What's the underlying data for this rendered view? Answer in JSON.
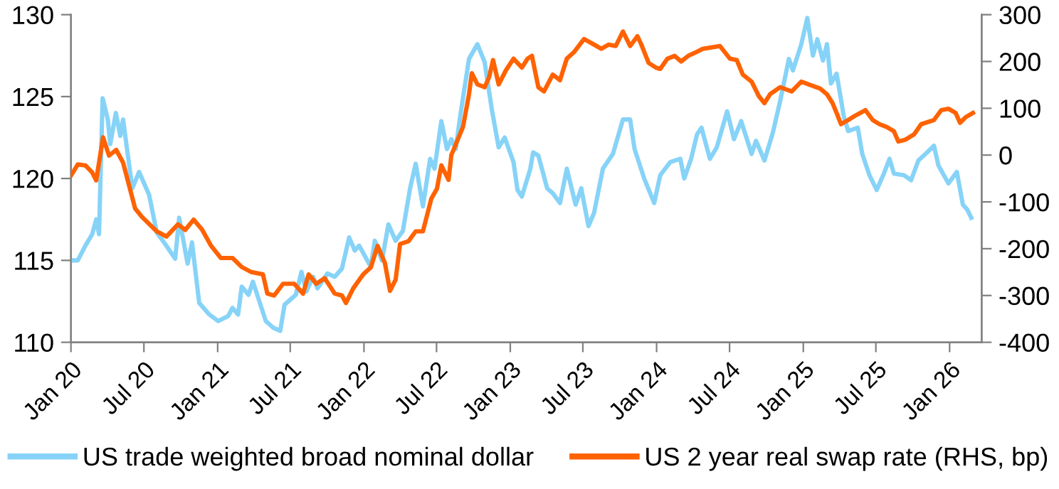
{
  "chart_data": {
    "type": "line",
    "xlim": [
      "2020-01-01",
      "2026-03-22"
    ],
    "xticks": [
      {
        "value": "2020-01-01",
        "label": "Jan 20"
      },
      {
        "value": "2020-07-01",
        "label": "Jul 20"
      },
      {
        "value": "2021-01-01",
        "label": "Jan 21"
      },
      {
        "value": "2021-07-01",
        "label": "Jul 21"
      },
      {
        "value": "2022-01-01",
        "label": "Jan 22"
      },
      {
        "value": "2022-07-01",
        "label": "Jul 22"
      },
      {
        "value": "2023-01-01",
        "label": "Jan 23"
      },
      {
        "value": "2023-07-01",
        "label": "Jul 23"
      },
      {
        "value": "2024-01-01",
        "label": "Jan 24"
      },
      {
        "value": "2024-07-01",
        "label": "Jul 24"
      },
      {
        "value": "2025-01-01",
        "label": "Jan 25"
      },
      {
        "value": "2025-07-01",
        "label": "Jul 25"
      },
      {
        "value": "2026-01-01",
        "label": "Jan 26"
      }
    ],
    "ylim": [
      110,
      130
    ],
    "yticks": [
      110,
      115,
      120,
      125,
      130
    ],
    "y2lim": [
      -400,
      300
    ],
    "y2ticks": [
      -400,
      -300,
      -200,
      -100,
      0,
      100,
      200,
      300
    ],
    "legend": "bottom",
    "grid": false,
    "marker": "none",
    "line_style": "solid",
    "series": [
      {
        "name": "US trade weighted broad nominal dollar",
        "color": "#87d3f8",
        "axis": "y",
        "x": [
          "2020-01-01",
          "2020-01-18",
          "2020-02-06",
          "2020-02-23",
          "2020-03-04",
          "2020-03-11",
          "2020-03-20",
          "2020-04-02",
          "2020-04-08",
          "2020-04-22",
          "2020-05-03",
          "2020-05-10",
          "2020-06-02",
          "2020-06-19",
          "2020-07-14",
          "2020-08-02",
          "2020-08-23",
          "2020-09-17",
          "2020-09-27",
          "2020-10-18",
          "2020-10-29",
          "2020-11-16",
          "2020-12-11",
          "2021-01-02",
          "2021-01-27",
          "2021-02-07",
          "2021-02-21",
          "2021-03-02",
          "2021-03-19",
          "2021-03-30",
          "2021-05-01",
          "2021-05-19",
          "2021-06-06",
          "2021-06-17",
          "2021-07-15",
          "2021-07-29",
          "2021-08-10",
          "2021-08-27",
          "2021-09-07",
          "2021-10-02",
          "2021-10-20",
          "2021-11-07",
          "2021-11-25",
          "2021-12-09",
          "2021-12-20",
          "2022-01-18",
          "2022-01-28",
          "2022-02-15",
          "2022-03-03",
          "2022-03-21",
          "2022-04-08",
          "2022-04-26",
          "2022-05-10",
          "2022-05-28",
          "2022-06-15",
          "2022-06-26",
          "2022-07-13",
          "2022-07-27",
          "2022-08-07",
          "2022-08-18",
          "2022-08-29",
          "2022-09-20",
          "2022-10-11",
          "2022-10-29",
          "2022-11-16",
          "2022-12-03",
          "2022-12-18",
          "2023-01-09",
          "2023-01-19",
          "2023-01-30",
          "2023-02-20",
          "2023-02-27",
          "2023-03-12",
          "2023-04-03",
          "2023-04-17",
          "2023-05-05",
          "2023-05-22",
          "2023-06-13",
          "2023-06-27",
          "2023-07-15",
          "2023-07-29",
          "2023-08-20",
          "2023-09-14",
          "2023-10-09",
          "2023-10-27",
          "2023-11-07",
          "2023-12-01",
          "2023-12-26",
          "2024-01-10",
          "2024-02-04",
          "2024-02-29",
          "2024-03-10",
          "2024-03-27",
          "2024-04-11",
          "2024-04-22",
          "2024-05-13",
          "2024-05-30",
          "2024-06-25",
          "2024-07-12",
          "2024-07-30",
          "2024-08-25",
          "2024-09-05",
          "2024-09-26",
          "2024-10-17",
          "2024-11-04",
          "2024-11-26",
          "2024-12-06",
          "2024-12-27",
          "2025-01-11",
          "2025-01-25",
          "2025-02-05",
          "2025-02-19",
          "2025-03-01",
          "2025-03-11",
          "2025-03-25",
          "2025-04-12",
          "2025-04-23",
          "2025-05-17",
          "2025-05-28",
          "2025-06-15",
          "2025-07-03",
          "2025-07-21",
          "2025-08-04",
          "2025-08-15",
          "2025-09-09",
          "2025-09-27",
          "2025-10-15",
          "2025-11-02",
          "2025-11-23",
          "2025-12-04",
          "2025-12-29",
          "2026-01-19",
          "2026-02-03",
          "2026-02-14",
          "2026-02-24"
        ],
        "values": [
          115.0,
          115.0,
          115.9,
          116.6,
          117.5,
          116.6,
          124.9,
          123.6,
          122.1,
          124.0,
          122.6,
          123.6,
          119.4,
          120.4,
          119.0,
          116.7,
          116.0,
          115.1,
          117.6,
          114.8,
          116.1,
          112.4,
          111.7,
          111.3,
          111.6,
          112.1,
          111.7,
          113.4,
          112.9,
          113.7,
          111.3,
          110.9,
          110.7,
          112.3,
          112.9,
          114.3,
          113.1,
          114.0,
          113.3,
          114.2,
          114.0,
          114.5,
          116.4,
          115.6,
          115.9,
          114.6,
          116.2,
          115.0,
          117.2,
          116.2,
          116.8,
          119.4,
          120.9,
          118.3,
          121.2,
          120.6,
          123.5,
          121.8,
          122.4,
          121.8,
          123.8,
          127.3,
          128.2,
          127.1,
          124.2,
          121.9,
          122.5,
          121.0,
          119.3,
          118.9,
          120.6,
          121.6,
          121.4,
          119.4,
          119.1,
          118.5,
          120.6,
          118.4,
          119.4,
          117.1,
          117.9,
          120.6,
          121.5,
          123.6,
          123.6,
          121.8,
          120.0,
          118.5,
          120.2,
          121.0,
          121.2,
          120.0,
          121.2,
          122.7,
          123.1,
          121.2,
          121.9,
          124.1,
          122.4,
          123.5,
          121.5,
          122.3,
          121.1,
          122.8,
          124.7,
          127.3,
          126.6,
          128.2,
          129.8,
          127.5,
          128.5,
          127.2,
          128.2,
          125.8,
          126.4,
          123.8,
          122.9,
          123.1,
          121.5,
          120.2,
          119.3,
          120.3,
          121.2,
          120.3,
          120.2,
          119.9,
          121.1,
          121.5,
          122.0,
          120.8,
          119.7,
          120.4,
          118.4,
          118.1,
          117.6
        ]
      },
      {
        "name": "US 2 year real swap rate (RHS, bp)",
        "color": "#ff6200",
        "axis": "y2",
        "x": [
          "2020-01-01",
          "2020-01-18",
          "2020-02-06",
          "2020-02-23",
          "2020-03-04",
          "2020-03-21",
          "2020-04-05",
          "2020-04-23",
          "2020-05-10",
          "2020-06-09",
          "2020-06-26",
          "2020-08-02",
          "2020-08-26",
          "2020-09-24",
          "2020-10-12",
          "2020-11-02",
          "2020-11-23",
          "2020-12-15",
          "2021-01-09",
          "2021-02-07",
          "2021-03-02",
          "2021-03-26",
          "2021-04-24",
          "2021-05-05",
          "2021-05-22",
          "2021-06-13",
          "2021-07-11",
          "2021-08-02",
          "2021-08-16",
          "2021-09-04",
          "2021-09-25",
          "2021-10-20",
          "2021-11-07",
          "2021-11-17",
          "2021-12-05",
          "2021-12-30",
          "2022-01-18",
          "2022-02-04",
          "2022-02-22",
          "2022-03-07",
          "2022-03-21",
          "2022-04-01",
          "2022-04-22",
          "2022-05-10",
          "2022-05-28",
          "2022-06-18",
          "2022-07-02",
          "2022-07-13",
          "2022-07-31",
          "2022-08-07",
          "2022-09-05",
          "2022-09-20",
          "2022-09-27",
          "2022-10-11",
          "2022-10-29",
          "2022-11-09",
          "2022-11-19",
          "2022-12-03",
          "2022-12-21",
          "2023-01-09",
          "2023-01-30",
          "2023-02-13",
          "2023-02-24",
          "2023-03-12",
          "2023-03-26",
          "2023-04-17",
          "2023-05-05",
          "2023-05-22",
          "2023-06-10",
          "2023-07-04",
          "2023-07-29",
          "2023-08-16",
          "2023-09-03",
          "2023-09-21",
          "2023-10-09",
          "2023-10-27",
          "2023-11-14",
          "2023-11-24",
          "2023-12-12",
          "2023-12-30",
          "2024-01-10",
          "2024-01-28",
          "2024-02-15",
          "2024-03-02",
          "2024-03-20",
          "2024-04-11",
          "2024-04-25",
          "2024-06-07",
          "2024-07-02",
          "2024-07-19",
          "2024-08-03",
          "2024-08-25",
          "2024-09-12",
          "2024-09-26",
          "2024-10-10",
          "2024-11-04",
          "2024-12-03",
          "2024-12-27",
          "2025-01-15",
          "2025-02-12",
          "2025-03-01",
          "2025-03-15",
          "2025-03-25",
          "2025-04-05",
          "2025-04-23",
          "2025-05-10",
          "2025-06-05",
          "2025-06-23",
          "2025-07-10",
          "2025-07-28",
          "2025-08-15",
          "2025-08-26",
          "2025-09-13",
          "2025-10-04",
          "2025-10-22",
          "2025-11-23",
          "2025-12-11",
          "2025-12-29",
          "2026-01-16",
          "2026-01-27",
          "2026-02-10",
          "2026-02-28"
        ],
        "values": [
          -44,
          -20,
          -22,
          -37,
          -54,
          38,
          -1,
          11,
          -16,
          -114,
          -132,
          -163,
          -174,
          -148,
          -160,
          -138,
          -159,
          -193,
          -220,
          -220,
          -239,
          -250,
          -255,
          -296,
          -300,
          -275,
          -275,
          -296,
          -255,
          -275,
          -263,
          -296,
          -300,
          -316,
          -285,
          -255,
          -240,
          -194,
          -230,
          -290,
          -266,
          -190,
          -184,
          -163,
          -163,
          -93,
          -72,
          -22,
          -53,
          0,
          60,
          130,
          175,
          151,
          145,
          166,
          203,
          151,
          181,
          206,
          187,
          206,
          212,
          145,
          136,
          172,
          160,
          206,
          221,
          248,
          236,
          227,
          236,
          233,
          264,
          233,
          254,
          236,
          197,
          187,
          184,
          206,
          212,
          200,
          212,
          221,
          227,
          233,
          206,
          203,
          172,
          157,
          126,
          111,
          130,
          145,
          136,
          157,
          151,
          142,
          130,
          111,
          90,
          66,
          75,
          84,
          96,
          75,
          66,
          60,
          51,
          29,
          33,
          44,
          66,
          75,
          96,
          99,
          90,
          69,
          81,
          90
        ]
      }
    ]
  }
}
